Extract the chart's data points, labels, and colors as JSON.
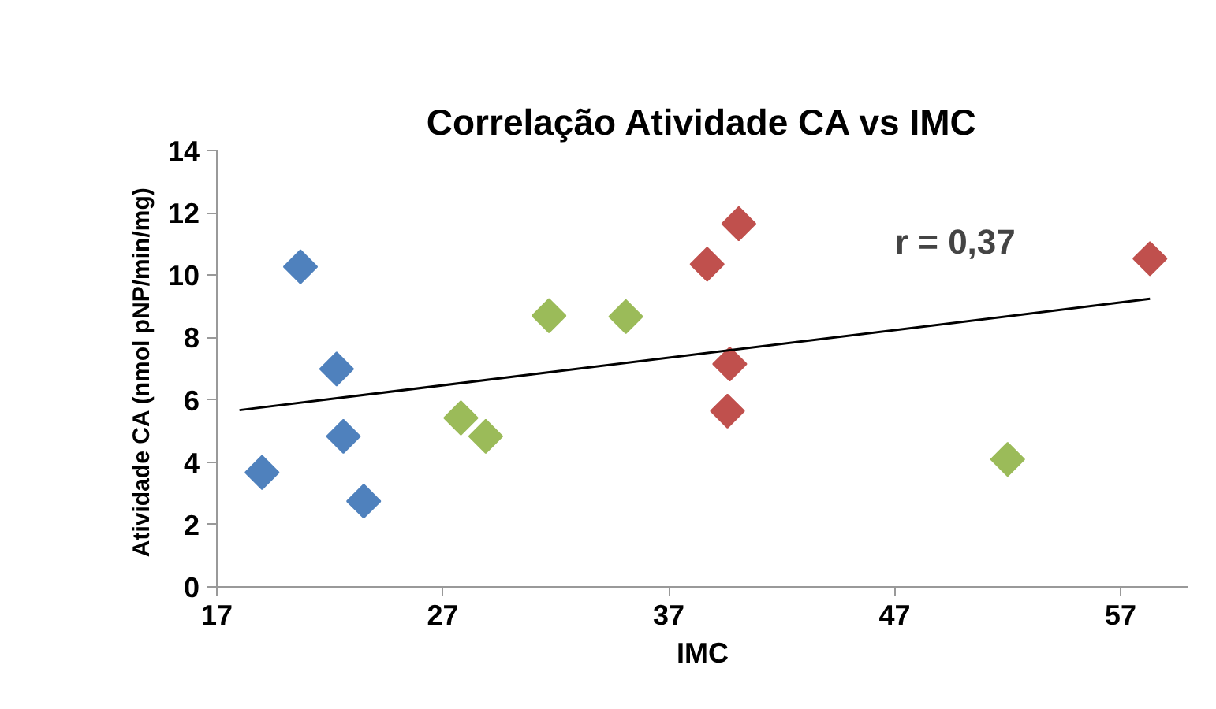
{
  "chart_data": {
    "type": "scatter",
    "title": "Correlação Atividade CA vs IMC",
    "xlabel": "IMC",
    "ylabel": "Atividade CA  (nmol pNP/min/mg)",
    "annotations": [
      "r = 0,37"
    ],
    "xlim": [
      17,
      60
    ],
    "xticks": [
      17,
      27,
      37,
      47,
      57
    ],
    "ylim": [
      0,
      14
    ],
    "yticks": [
      0,
      2,
      4,
      6,
      8,
      10,
      12,
      14
    ],
    "grid": false,
    "marker": "diamond",
    "series": [
      {
        "color": "#4f81bd",
        "x": [
          19.0,
          20.7,
          22.3,
          22.6,
          23.5
        ],
        "values": [
          3.67,
          10.27,
          6.99,
          4.83,
          2.75
        ]
      },
      {
        "color": "#9bbb59",
        "x": [
          27.8,
          28.9,
          31.7,
          35.1,
          52.0
        ],
        "values": [
          5.42,
          4.83,
          8.7,
          8.67,
          4.09
        ]
      },
      {
        "color": "#c0504d",
        "x": [
          40.1,
          38.7,
          39.7,
          39.6,
          58.3
        ],
        "values": [
          11.65,
          10.35,
          7.15,
          5.64,
          10.53
        ]
      },
      {
        "type": "line",
        "marker": "none",
        "color": "#000000",
        "x": [
          18.0,
          58.3
        ],
        "values": [
          5.67,
          9.24
        ]
      }
    ]
  }
}
